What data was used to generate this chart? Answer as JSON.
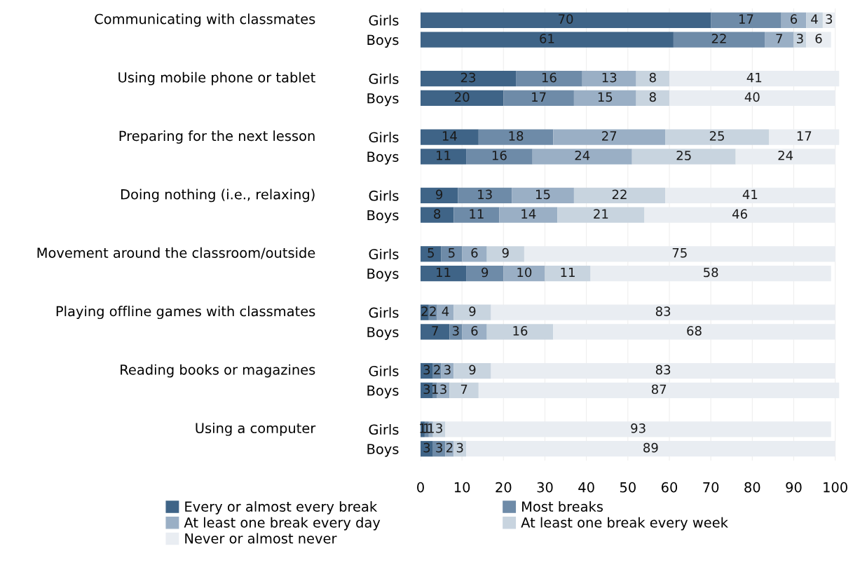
{
  "chart_data": {
    "type": "bar",
    "orientation": "horizontal",
    "stacked": true,
    "data_labels": true,
    "grid": "x",
    "legend": "bottom",
    "categories": [
      "Girls",
      "Boys",
      "Girls",
      "Boys",
      "Girls",
      "Boys",
      "Girls",
      "Boys",
      "Girls",
      "Boys",
      "Girls",
      "Boys",
      "Girls",
      "Boys",
      "Girls",
      "Boys"
    ],
    "annotations": [
      "Communicating with classmates",
      "Using mobile phone or tablet",
      "Preparing for the next lesson",
      "Doing nothing (i.e., relaxing)",
      "Movement around the classroom/outside",
      "Playing offline games with classmates",
      "Reading books or magazines",
      "Using a computer"
    ],
    "xlim": [
      0,
      101
    ],
    "xticks": [
      0,
      10,
      20,
      30,
      40,
      50,
      60,
      70,
      80,
      90,
      100
    ],
    "series": [
      {
        "name": "Every or almost every break",
        "color": "#3f6487",
        "values": [
          70,
          61,
          23,
          20,
          14,
          11,
          9,
          8,
          5,
          11,
          2,
          7,
          3,
          3,
          1,
          3
        ]
      },
      {
        "name": "Most breaks",
        "color": "#6e8ba8",
        "values": [
          17,
          22,
          16,
          17,
          18,
          16,
          13,
          11,
          5,
          9,
          2,
          3,
          2,
          1,
          1,
          3
        ]
      },
      {
        "name": "At least one break every day",
        "color": "#9aafc5",
        "values": [
          6,
          7,
          13,
          15,
          27,
          24,
          15,
          14,
          6,
          10,
          4,
          6,
          3,
          3,
          1,
          2
        ]
      },
      {
        "name": "At least one break every week",
        "color": "#c8d4df",
        "values": [
          4,
          3,
          8,
          8,
          25,
          25,
          22,
          21,
          9,
          11,
          9,
          16,
          9,
          7,
          3,
          3
        ]
      },
      {
        "name": "Never or almost never",
        "color": "#e9edf2",
        "values": [
          3,
          6,
          41,
          40,
          17,
          24,
          41,
          46,
          75,
          58,
          83,
          68,
          83,
          87,
          93,
          89
        ]
      }
    ]
  }
}
